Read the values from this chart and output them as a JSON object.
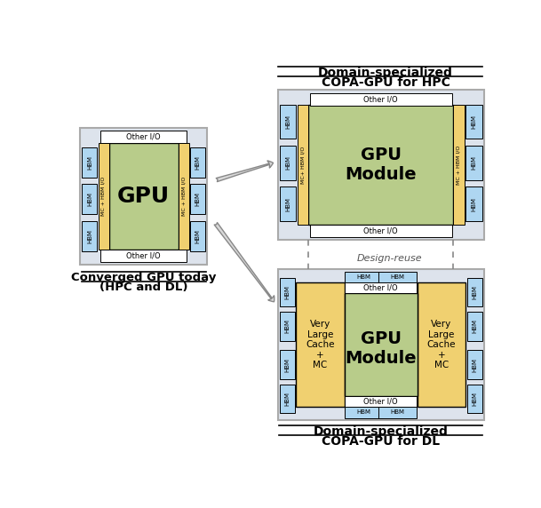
{
  "bg_color": "#ffffff",
  "title_hpc_line1": "Domain-specialized",
  "title_hpc_line2": "COPA-GPU for HPC",
  "title_dl_line1": "Domain-specialized",
  "title_dl_line2": "COPA-GPU for DL",
  "title_conv_line1": "Converged GPU today",
  "title_conv_line2": "(HPC and DL)",
  "design_reuse_label": "Design-reuse",
  "hbm_color": "#aed6f1",
  "gpu_color": "#b8cc8a",
  "mc_color": "#f0d070",
  "outline_color": "#000000",
  "border_gray": "#aaaaaa",
  "outer_fill": "#dde3ec",
  "io_color": "#ffffff",
  "arrow_fill": "#d8d8d8",
  "arrow_edge": "#888888"
}
